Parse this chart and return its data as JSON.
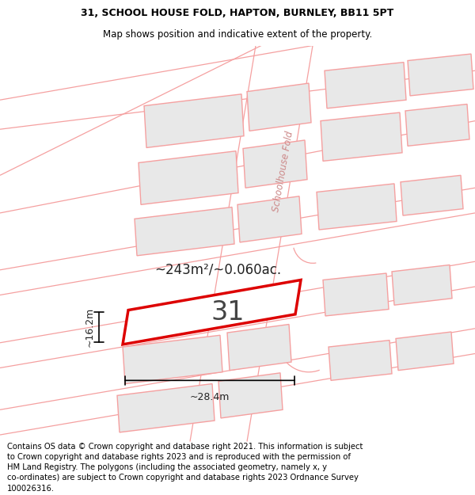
{
  "title_line1": "31, SCHOOL HOUSE FOLD, HAPTON, BURNLEY, BB11 5PT",
  "title_line2": "Map shows position and indicative extent of the property.",
  "footer_text": "Contains OS data © Crown copyright and database right 2021. This information is subject to Crown copyright and database rights 2023 and is reproduced with the permission of HM Land Registry. The polygons (including the associated geometry, namely x, y co-ordinates) are subject to Crown copyright and database rights 2023 Ordnance Survey 100026316.",
  "area_text": "~243m²/~0.060ac.",
  "label_number": "31",
  "dim_width": "~28.4m",
  "dim_height": "~16.2m",
  "road_label": "Schoolhouse Fold",
  "bg_color": "#ffffff",
  "map_bg": "#ffffff",
  "building_fill": "#e8e8e8",
  "building_stroke": "#f5a0a0",
  "road_stroke": "#f5a0a0",
  "plot_stroke": "#dd0000",
  "title_fontsize": 9,
  "subtitle_fontsize": 8.5,
  "footer_fontsize": 7.2,
  "area_fontsize": 12,
  "number_fontsize": 24,
  "dim_fontsize": 9,
  "road_label_fontsize": 8.5
}
